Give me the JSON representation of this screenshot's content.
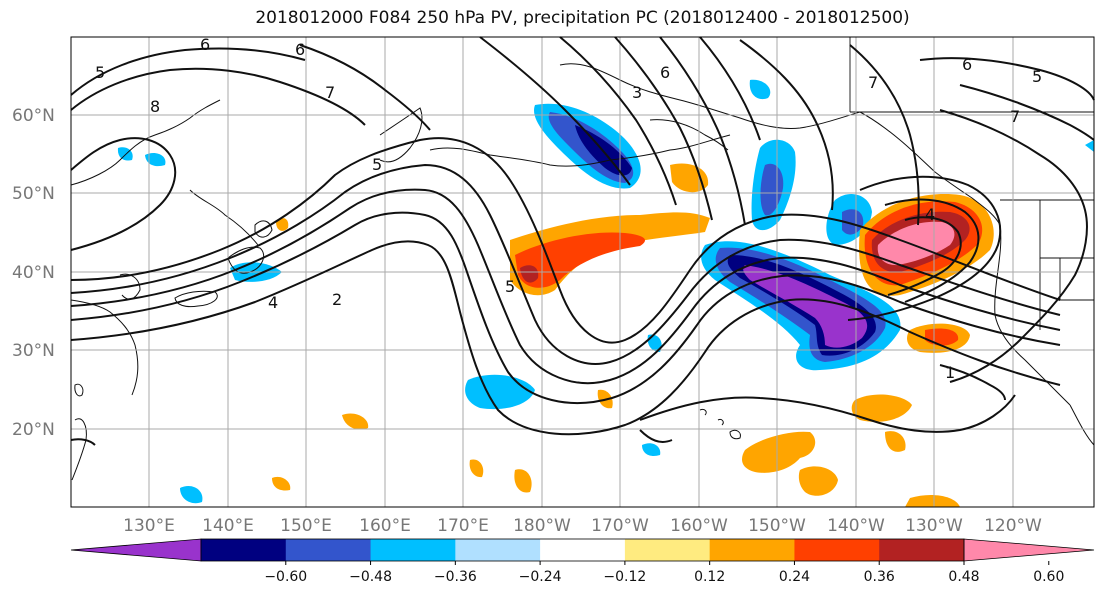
{
  "title": "2018012000 F084 250 hPa PV, precipitation PC (2018012400 - 2018012500)",
  "map": {
    "lat_labels": [
      "60°N",
      "50°N",
      "40°N",
      "30°N",
      "20°N"
    ],
    "lon_labels": [
      "130°E",
      "140°E",
      "150°E",
      "160°E",
      "170°E",
      "180°W",
      "170°W",
      "160°W",
      "150°W",
      "140°W",
      "130°W",
      "120°W"
    ],
    "contour_labels": [
      "5",
      "6",
      "8",
      "6",
      "7",
      "5",
      "3",
      "6",
      "7",
      "6",
      "5",
      "7",
      "4",
      "2",
      "5",
      "4",
      "1"
    ]
  },
  "colorbar": {
    "colors": [
      "#9933cc",
      "#000080",
      "#3355cc",
      "#00bfff",
      "#b0e0ff",
      "#ffffff",
      "#ffeb80",
      "#ffa500",
      "#ff4000",
      "#b22222",
      "#ff88aa"
    ],
    "ticks": [
      "−0.60",
      "−0.48",
      "−0.36",
      "−0.24",
      "−0.12",
      "0.12",
      "0.24",
      "0.36",
      "0.48",
      "0.60"
    ]
  },
  "legend_colors": {
    "neg_strong": "#9933cc",
    "neg_navy": "#000080",
    "neg_blue": "#3355cc",
    "neg_sky": "#00bfff",
    "pos_yellow": "#ffeb80",
    "pos_orange": "#ffa500",
    "pos_red": "#ff4000",
    "pos_dark": "#b22222",
    "pos_pink": "#ff88aa"
  }
}
